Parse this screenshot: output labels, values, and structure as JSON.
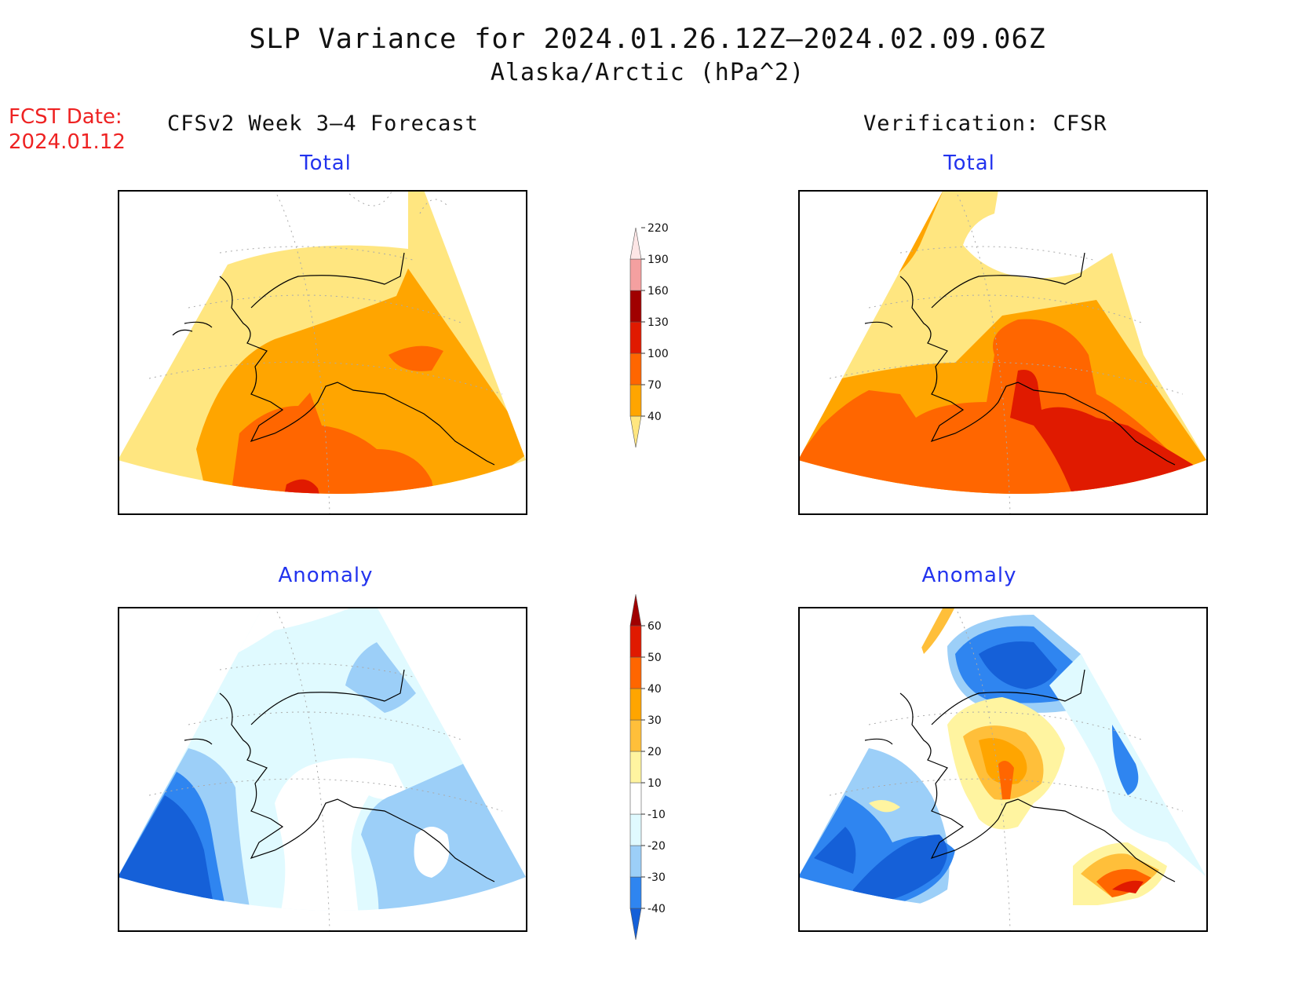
{
  "title": "SLP Variance for 2024.01.26.12Z–2024.02.09.06Z",
  "subtitle": "Alaska/Arctic (hPa^2)",
  "fcst_date_label": "FCST Date:",
  "fcst_date_value": "2024.01.12",
  "left_header": "CFSv2 Week 3–4 Forecast",
  "right_header": "Verification: CFSR",
  "panels": [
    {
      "label": "Total",
      "source": "forecast"
    },
    {
      "label": "Total",
      "source": "verification"
    },
    {
      "label": "Anomaly",
      "source": "forecast"
    },
    {
      "label": "Anomaly",
      "source": "verification"
    }
  ],
  "colorbar_total": {
    "ticks": [
      "40",
      "70",
      "100",
      "130",
      "160",
      "190",
      "220"
    ],
    "colors": [
      "#ffe680",
      "#ffa500",
      "#ff6600",
      "#e01a00",
      "#a00000",
      "#f4a0a0",
      "#fde6e6"
    ]
  },
  "colorbar_anomaly": {
    "ticks": [
      "-40",
      "-30",
      "-20",
      "-10",
      "10",
      "20",
      "30",
      "40",
      "50",
      "60"
    ],
    "colors": [
      "#1560d8",
      "#2f85f0",
      "#9ccff8",
      "#e0faff",
      "#ffffff",
      "#fff4a0",
      "#ffbf3a",
      "#ffa500",
      "#ff6600",
      "#e01a00",
      "#a00000"
    ]
  },
  "colors": {
    "title_red": "#ee2222",
    "subtitle_blue": "#2233ee"
  }
}
